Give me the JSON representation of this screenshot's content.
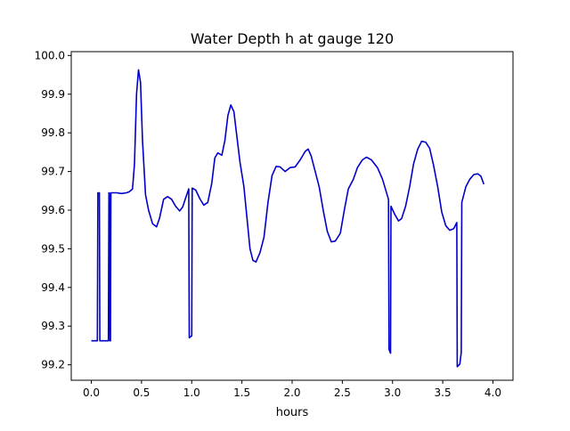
{
  "chart_data": {
    "type": "line",
    "title": "Water Depth h at gauge 120",
    "xlabel": "hours",
    "ylabel": "",
    "xlim": [
      -0.2,
      4.2
    ],
    "ylim": [
      99.16,
      100.01
    ],
    "x_ticks": [
      0.0,
      0.5,
      1.0,
      1.5,
      2.0,
      2.5,
      3.0,
      3.5,
      4.0
    ],
    "x_tick_labels": [
      "0.0",
      "0.5",
      "1.0",
      "1.5",
      "2.0",
      "2.5",
      "3.0",
      "3.5",
      "4.0"
    ],
    "y_ticks": [
      99.2,
      99.3,
      99.4,
      99.5,
      99.6,
      99.7,
      99.8,
      99.9,
      100.0
    ],
    "y_tick_labels": [
      "99.2",
      "99.3",
      "99.4",
      "99.5",
      "99.6",
      "99.7",
      "99.8",
      "99.9",
      "100.0"
    ],
    "grid": false,
    "legend": "none",
    "series": [
      {
        "color": "#0000cc",
        "points": [
          [
            0.0,
            99.262
          ],
          [
            0.06,
            99.262
          ],
          [
            0.065,
            99.645
          ],
          [
            0.08,
            99.645
          ],
          [
            0.085,
            99.262
          ],
          [
            0.17,
            99.262
          ],
          [
            0.175,
            99.645
          ],
          [
            0.18,
            99.645
          ],
          [
            0.185,
            99.262
          ],
          [
            0.19,
            99.262
          ],
          [
            0.195,
            99.645
          ],
          [
            0.25,
            99.645
          ],
          [
            0.3,
            99.643
          ],
          [
            0.35,
            99.645
          ],
          [
            0.38,
            99.648
          ],
          [
            0.41,
            99.655
          ],
          [
            0.43,
            99.72
          ],
          [
            0.45,
            99.9
          ],
          [
            0.47,
            99.963
          ],
          [
            0.49,
            99.93
          ],
          [
            0.51,
            99.78
          ],
          [
            0.54,
            99.64
          ],
          [
            0.57,
            99.6
          ],
          [
            0.61,
            99.565
          ],
          [
            0.65,
            99.557
          ],
          [
            0.68,
            99.58
          ],
          [
            0.72,
            99.628
          ],
          [
            0.76,
            99.635
          ],
          [
            0.8,
            99.628
          ],
          [
            0.84,
            99.61
          ],
          [
            0.88,
            99.598
          ],
          [
            0.91,
            99.608
          ],
          [
            0.94,
            99.632
          ],
          [
            0.97,
            99.655
          ],
          [
            0.975,
            99.27
          ],
          [
            1.0,
            99.275
          ],
          [
            1.005,
            99.657
          ],
          [
            1.04,
            99.652
          ],
          [
            1.08,
            99.63
          ],
          [
            1.12,
            99.613
          ],
          [
            1.16,
            99.62
          ],
          [
            1.2,
            99.67
          ],
          [
            1.23,
            99.735
          ],
          [
            1.26,
            99.748
          ],
          [
            1.3,
            99.742
          ],
          [
            1.33,
            99.78
          ],
          [
            1.36,
            99.845
          ],
          [
            1.39,
            99.872
          ],
          [
            1.42,
            99.855
          ],
          [
            1.45,
            99.79
          ],
          [
            1.48,
            99.725
          ],
          [
            1.52,
            99.66
          ],
          [
            1.55,
            99.58
          ],
          [
            1.58,
            99.5
          ],
          [
            1.61,
            99.47
          ],
          [
            1.64,
            99.466
          ],
          [
            1.68,
            99.49
          ],
          [
            1.72,
            99.53
          ],
          [
            1.76,
            99.62
          ],
          [
            1.8,
            99.69
          ],
          [
            1.84,
            99.713
          ],
          [
            1.88,
            99.712
          ],
          [
            1.93,
            99.7
          ],
          [
            1.98,
            99.71
          ],
          [
            2.03,
            99.712
          ],
          [
            2.08,
            99.73
          ],
          [
            2.13,
            99.752
          ],
          [
            2.16,
            99.758
          ],
          [
            2.19,
            99.74
          ],
          [
            2.23,
            99.7
          ],
          [
            2.27,
            99.66
          ],
          [
            2.31,
            99.6
          ],
          [
            2.35,
            99.545
          ],
          [
            2.39,
            99.518
          ],
          [
            2.43,
            99.52
          ],
          [
            2.48,
            99.54
          ],
          [
            2.52,
            99.6
          ],
          [
            2.56,
            99.655
          ],
          [
            2.61,
            99.68
          ],
          [
            2.65,
            99.71
          ],
          [
            2.7,
            99.73
          ],
          [
            2.74,
            99.737
          ],
          [
            2.79,
            99.73
          ],
          [
            2.85,
            99.71
          ],
          [
            2.9,
            99.68
          ],
          [
            2.96,
            99.628
          ],
          [
            2.965,
            99.24
          ],
          [
            2.98,
            99.23
          ],
          [
            2.985,
            99.61
          ],
          [
            3.02,
            99.59
          ],
          [
            3.06,
            99.572
          ],
          [
            3.09,
            99.578
          ],
          [
            3.13,
            99.61
          ],
          [
            3.17,
            99.66
          ],
          [
            3.21,
            99.72
          ],
          [
            3.25,
            99.757
          ],
          [
            3.29,
            99.778
          ],
          [
            3.33,
            99.776
          ],
          [
            3.37,
            99.76
          ],
          [
            3.41,
            99.715
          ],
          [
            3.45,
            99.66
          ],
          [
            3.49,
            99.595
          ],
          [
            3.53,
            99.56
          ],
          [
            3.57,
            99.548
          ],
          [
            3.61,
            99.552
          ],
          [
            3.64,
            99.568
          ],
          [
            3.645,
            99.195
          ],
          [
            3.67,
            99.202
          ],
          [
            3.685,
            99.232
          ],
          [
            3.69,
            99.62
          ],
          [
            3.73,
            99.66
          ],
          [
            3.77,
            99.68
          ],
          [
            3.81,
            99.692
          ],
          [
            3.85,
            99.694
          ],
          [
            3.88,
            99.688
          ],
          [
            3.91,
            99.667
          ]
        ]
      }
    ]
  }
}
